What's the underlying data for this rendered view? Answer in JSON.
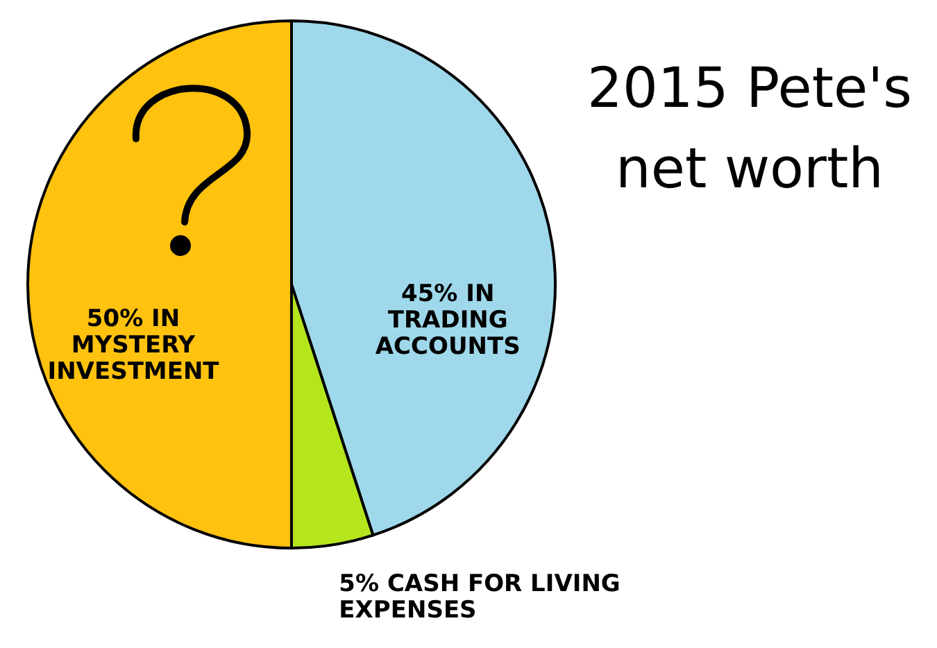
{
  "chart_data": {
    "type": "pie",
    "title": "2015 Pete's net worth",
    "categories": [
      "IN TRADING ACCOUNTS",
      "CASH FOR LIVING EXPENSES",
      "IN MYSTERY INVESTMENT"
    ],
    "values": [
      45,
      5,
      50
    ],
    "value_labels": [
      "45%",
      "5%",
      "50%"
    ],
    "colors": [
      "#9ed8ea",
      "#b5e61d",
      "#ffc20e"
    ]
  }
}
